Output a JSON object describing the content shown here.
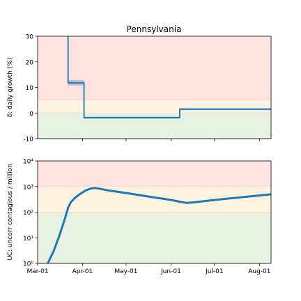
{
  "figure_title": "Pennsylvania",
  "chart_data": [
    {
      "type": "line",
      "ylabel": "δ: daily growth (%)",
      "ylim": [
        -10,
        30
      ],
      "yticks": [
        -10,
        0,
        10,
        20,
        30
      ],
      "xticks": [
        "2020-04-01",
        "2020-05-01",
        "2020-06-01",
        "2020-07-01",
        "2020-08-01"
      ],
      "xlim": [
        "2020-03-01",
        "2020-08-09"
      ],
      "bands": [
        {
          "from": 5,
          "to": 30,
          "color": "#fde2e2"
        },
        {
          "from": 0,
          "to": 5,
          "color": "#fdf3e0"
        },
        {
          "from": -10,
          "to": 0,
          "color": "#e6f1e2"
        }
      ],
      "series": [
        {
          "color": "#1f77b4",
          "points": [
            [
              "2020-03-22",
              30
            ],
            [
              "2020-03-22",
              11.8
            ],
            [
              "2020-04-02",
              11.8
            ],
            [
              "2020-04-02",
              -1.8
            ],
            [
              "2020-06-07",
              -1.8
            ],
            [
              "2020-06-07",
              1.5
            ],
            [
              "2020-08-09",
              1.5
            ]
          ],
          "band": [
            {
              "x0": "2020-03-22",
              "x1": "2020-04-02",
              "lo": 10.8,
              "hi": 12.8
            },
            {
              "x0": "2020-04-02",
              "x1": "2020-06-07",
              "lo": -2.2,
              "hi": -1.4
            },
            {
              "x0": "2020-06-07",
              "x1": "2020-08-09",
              "lo": 1.1,
              "hi": 2.0
            }
          ]
        }
      ]
    },
    {
      "type": "line",
      "ylabel": "UC: uncorr contagious / million",
      "yscale": "log",
      "ylim": [
        1,
        10000
      ],
      "yticks": [
        1,
        10,
        100,
        1000,
        10000
      ],
      "yticklabels": [
        "10⁰",
        "10¹",
        "10²",
        "10³",
        "10⁴"
      ],
      "xticks": [
        "2020-03-01",
        "2020-04-01",
        "2020-05-01",
        "2020-06-01",
        "2020-07-01",
        "2020-08-01"
      ],
      "xticklabels": [
        "Mar-01",
        "Apr-01",
        "May-01",
        "Jun-01",
        "Jul-01",
        "Aug-01"
      ],
      "xlim": [
        "2020-03-01",
        "2020-08-09"
      ],
      "bands": [
        {
          "from": 1000,
          "to": 10000,
          "color": "#fde2e2"
        },
        {
          "from": 100,
          "to": 1000,
          "color": "#fdf3e0"
        },
        {
          "from": 1,
          "to": 100,
          "color": "#e6f1e2"
        }
      ],
      "series": [
        {
          "color": "#1f77b4",
          "points": [
            [
              "2020-03-08",
              1
            ],
            [
              "2020-03-12",
              3
            ],
            [
              "2020-03-16",
              12
            ],
            [
              "2020-03-20",
              60
            ],
            [
              "2020-03-22",
              150
            ],
            [
              "2020-03-24",
              250
            ],
            [
              "2020-03-27",
              370
            ],
            [
              "2020-03-30",
              500
            ],
            [
              "2020-04-03",
              700
            ],
            [
              "2020-04-07",
              850
            ],
            [
              "2020-04-10",
              880
            ],
            [
              "2020-04-13",
              820
            ],
            [
              "2020-04-18",
              720
            ],
            [
              "2020-05-01",
              560
            ],
            [
              "2020-05-15",
              420
            ],
            [
              "2020-06-01",
              300
            ],
            [
              "2020-06-08",
              250
            ],
            [
              "2020-06-12",
              230
            ],
            [
              "2020-06-16",
              240
            ],
            [
              "2020-07-01",
              300
            ],
            [
              "2020-07-15",
              360
            ],
            [
              "2020-08-01",
              450
            ],
            [
              "2020-08-09",
              500
            ]
          ]
        }
      ]
    }
  ]
}
